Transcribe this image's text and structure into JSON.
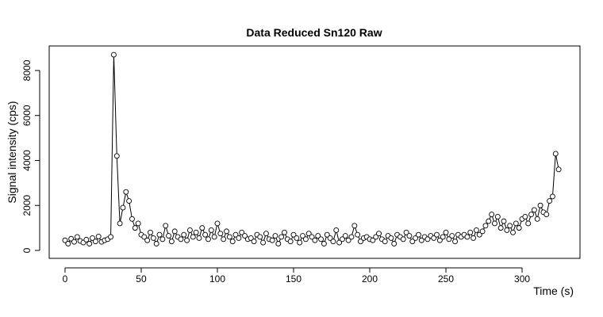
{
  "chart_data": {
    "type": "line",
    "title": "Data Reduced Sn120 Raw",
    "x_label": "Time (s)",
    "y_label": "Signal intensity (cps)",
    "xlim": [
      -10.4,
      338
    ],
    "ylim": [
      -352,
      9091
    ],
    "xticks": [
      0,
      50,
      100,
      150,
      200,
      250,
      300
    ],
    "yticks": [
      0,
      2000,
      4000,
      6000,
      8000
    ],
    "color": "#000000",
    "x": [
      0,
      2,
      4,
      6,
      8,
      10,
      12,
      14,
      16,
      18,
      20,
      22,
      24,
      26,
      28,
      30,
      32,
      34,
      36,
      38,
      40,
      42,
      44,
      46,
      48,
      50,
      52,
      54,
      56,
      58,
      60,
      62,
      64,
      66,
      68,
      70,
      72,
      74,
      76,
      78,
      80,
      82,
      84,
      86,
      88,
      90,
      92,
      94,
      96,
      98,
      100,
      102,
      104,
      106,
      108,
      110,
      112,
      114,
      116,
      118,
      120,
      122,
      124,
      126,
      128,
      130,
      132,
      134,
      136,
      138,
      140,
      142,
      144,
      146,
      148,
      150,
      152,
      154,
      156,
      158,
      160,
      162,
      164,
      166,
      168,
      170,
      172,
      174,
      176,
      178,
      180,
      182,
      184,
      186,
      188,
      190,
      192,
      194,
      196,
      198,
      200,
      202,
      204,
      206,
      208,
      210,
      212,
      214,
      216,
      218,
      220,
      222,
      224,
      226,
      228,
      230,
      232,
      234,
      236,
      238,
      240,
      242,
      244,
      246,
      248,
      250,
      252,
      254,
      256,
      258,
      260,
      262,
      264,
      266,
      268,
      270,
      272,
      274,
      276,
      278,
      280,
      282,
      284,
      286,
      288,
      290,
      292,
      294,
      296,
      298,
      300,
      302,
      304,
      306,
      308,
      310,
      312,
      314,
      316,
      318,
      320,
      322,
      324
    ],
    "values": [
      450,
      300,
      520,
      380,
      600,
      420,
      350,
      480,
      300,
      550,
      400,
      620,
      380,
      450,
      500,
      600,
      8700,
      4200,
      1200,
      1900,
      2600,
      2200,
      1400,
      1000,
      1200,
      700,
      600,
      450,
      800,
      550,
      300,
      700,
      500,
      1100,
      650,
      400,
      850,
      600,
      500,
      700,
      450,
      900,
      600,
      800,
      550,
      1000,
      700,
      500,
      900,
      600,
      1200,
      750,
      500,
      850,
      600,
      400,
      700,
      550,
      800,
      650,
      500,
      550,
      400,
      700,
      600,
      350,
      750,
      500,
      450,
      650,
      300,
      600,
      800,
      500,
      400,
      700,
      550,
      350,
      650,
      500,
      750,
      600,
      450,
      650,
      500,
      300,
      700,
      550,
      400,
      900,
      350,
      500,
      650,
      450,
      600,
      1100,
      700,
      400,
      550,
      600,
      500,
      450,
      600,
      750,
      500,
      400,
      650,
      550,
      300,
      700,
      600,
      500,
      800,
      650,
      400,
      550,
      700,
      450,
      600,
      500,
      650,
      550,
      700,
      450,
      600,
      800,
      500,
      650,
      400,
      700,
      600,
      700,
      600,
      800,
      550,
      900,
      700,
      850,
      1100,
      1300,
      1600,
      1200,
      1500,
      1000,
      1300,
      900,
      1100,
      800,
      1200,
      1000,
      1400,
      1500,
      1200,
      1600,
      1800,
      1400,
      2000,
      1700,
      1600,
      2200,
      2400,
      4300,
      3600
    ]
  }
}
